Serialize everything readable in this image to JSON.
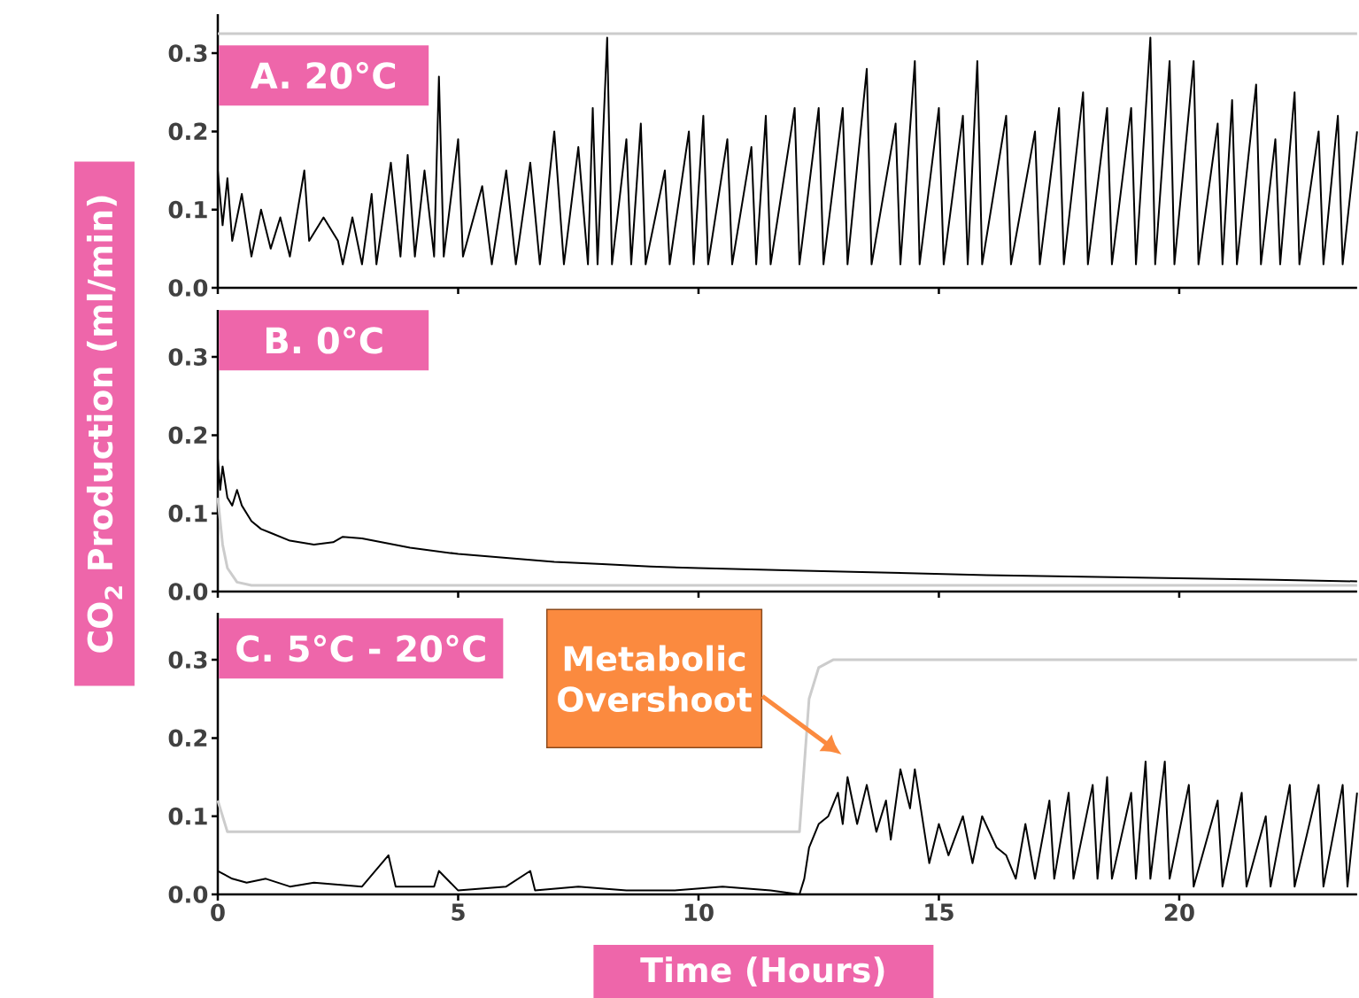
{
  "chart_data": [
    {
      "type": "line",
      "title": "A. 20°C",
      "xlim": [
        0,
        23.7
      ],
      "ylim": [
        0,
        0.35
      ],
      "xticks": [
        0,
        5,
        10,
        15,
        20
      ],
      "yticks": [
        {
          "value": 0,
          "label": "0.0"
        },
        {
          "value": 0.1,
          "label": "0.1"
        },
        {
          "value": 0.2,
          "label": "0.2"
        },
        {
          "value": 0.3,
          "label": "0.3"
        }
      ],
      "tick_labels": "y",
      "series": [
        {
          "color": "#cccccc",
          "x": [
            0,
            23.7
          ],
          "values": [
            0.325,
            0.325
          ]
        },
        {
          "color": "#000000",
          "x": [
            0,
            0.1,
            0.2,
            0.3,
            0.5,
            0.7,
            0.9,
            1.1,
            1.3,
            1.5,
            1.8,
            1.9,
            2.2,
            2.5,
            2.6,
            2.8,
            3.0,
            3.2,
            3.3,
            3.6,
            3.8,
            3.95,
            4.1,
            4.3,
            4.5,
            4.6,
            4.7,
            5.0,
            5.1,
            5.5,
            5.7,
            6.0,
            6.2,
            6.5,
            6.7,
            7.0,
            7.2,
            7.5,
            7.7,
            7.8,
            7.9,
            8.1,
            8.2,
            8.5,
            8.6,
            8.8,
            8.9,
            9.3,
            9.4,
            9.8,
            9.9,
            10.1,
            10.2,
            10.6,
            10.7,
            11.1,
            11.2,
            11.4,
            11.5,
            12.0,
            12.1,
            12.5,
            12.6,
            13.0,
            13.1,
            13.5,
            13.6,
            14.1,
            14.2,
            14.5,
            14.6,
            15.0,
            15.1,
            15.5,
            15.6,
            15.8,
            15.9,
            16.4,
            16.5,
            17.0,
            17.1,
            17.5,
            17.6,
            18.0,
            18.1,
            18.5,
            18.6,
            19.0,
            19.1,
            19.4,
            19.5,
            19.8,
            19.9,
            20.3,
            20.4,
            20.8,
            20.9,
            21.1,
            21.2,
            21.6,
            21.7,
            22.0,
            22.1,
            22.4,
            22.5,
            22.9,
            23.0,
            23.3,
            23.4,
            23.7
          ],
          "values": [
            0.15,
            0.08,
            0.14,
            0.06,
            0.12,
            0.04,
            0.1,
            0.05,
            0.09,
            0.04,
            0.15,
            0.06,
            0.09,
            0.06,
            0.03,
            0.09,
            0.03,
            0.12,
            0.03,
            0.16,
            0.04,
            0.17,
            0.04,
            0.15,
            0.04,
            0.27,
            0.04,
            0.19,
            0.04,
            0.13,
            0.03,
            0.15,
            0.03,
            0.16,
            0.03,
            0.2,
            0.03,
            0.18,
            0.03,
            0.23,
            0.03,
            0.32,
            0.03,
            0.19,
            0.03,
            0.21,
            0.03,
            0.15,
            0.03,
            0.2,
            0.03,
            0.22,
            0.03,
            0.19,
            0.03,
            0.18,
            0.03,
            0.22,
            0.03,
            0.23,
            0.03,
            0.23,
            0.03,
            0.23,
            0.03,
            0.28,
            0.03,
            0.21,
            0.03,
            0.29,
            0.03,
            0.23,
            0.03,
            0.22,
            0.03,
            0.29,
            0.03,
            0.22,
            0.03,
            0.2,
            0.03,
            0.23,
            0.03,
            0.25,
            0.03,
            0.23,
            0.03,
            0.23,
            0.03,
            0.32,
            0.03,
            0.29,
            0.03,
            0.29,
            0.03,
            0.21,
            0.03,
            0.24,
            0.03,
            0.26,
            0.03,
            0.19,
            0.03,
            0.25,
            0.03,
            0.2,
            0.03,
            0.22,
            0.03,
            0.2
          ]
        }
      ]
    },
    {
      "type": "line",
      "title": "B. 0°C",
      "ylabel": "CO$_{2}$ Production (ml/min)",
      "xlim": [
        0,
        23.7
      ],
      "ylim": [
        0,
        0.36
      ],
      "xticks": [
        0,
        5,
        10,
        15,
        20
      ],
      "yticks": [
        {
          "value": 0,
          "label": "0.0"
        },
        {
          "value": 0.1,
          "label": "0.1"
        },
        {
          "value": 0.2,
          "label": "0.2"
        },
        {
          "value": 0.3,
          "label": "0.3"
        }
      ],
      "tick_labels": "y",
      "series": [
        {
          "color": "#cccccc",
          "x": [
            0,
            0.1,
            0.2,
            0.4,
            0.7,
            2,
            23.7
          ],
          "values": [
            0.12,
            0.06,
            0.03,
            0.012,
            0.008,
            0.008,
            0.008
          ]
        },
        {
          "color": "#000000",
          "x": [
            0,
            0.05,
            0.1,
            0.2,
            0.3,
            0.4,
            0.5,
            0.7,
            0.9,
            1.1,
            1.5,
            2,
            2.4,
            2.6,
            3,
            4,
            5,
            6,
            7,
            8,
            9,
            10,
            12,
            14,
            16,
            18,
            20,
            22,
            23.7
          ],
          "values": [
            0.17,
            0.13,
            0.16,
            0.12,
            0.11,
            0.13,
            0.11,
            0.09,
            0.08,
            0.075,
            0.065,
            0.06,
            0.063,
            0.07,
            0.068,
            0.056,
            0.048,
            0.043,
            0.038,
            0.035,
            0.032,
            0.03,
            0.027,
            0.024,
            0.021,
            0.019,
            0.017,
            0.015,
            0.013
          ]
        }
      ]
    },
    {
      "type": "line",
      "title": "C. 5°C - 20°C",
      "xlabel": "Time (Hours)",
      "xlim": [
        0,
        23.7
      ],
      "ylim": [
        0,
        0.36
      ],
      "xticks": [
        0,
        5,
        10,
        15,
        20
      ],
      "yticks": [
        {
          "value": 0,
          "label": "0.0"
        },
        {
          "value": 0.1,
          "label": "0.1"
        },
        {
          "value": 0.2,
          "label": "0.2"
        },
        {
          "value": 0.3,
          "label": "0.3"
        }
      ],
      "annotations": [
        "Metabolic Overshoot"
      ],
      "series": [
        {
          "color": "#cccccc",
          "x": [
            0,
            0.2,
            12.1,
            12.3,
            12.5,
            12.8,
            23.7
          ],
          "values": [
            0.12,
            0.08,
            0.08,
            0.25,
            0.29,
            0.3,
            0.3
          ]
        },
        {
          "color": "#000000",
          "x": [
            0,
            0.3,
            0.6,
            1,
            1.5,
            2,
            3,
            3.55,
            3.7,
            4.5,
            4.6,
            5,
            6,
            6.5,
            6.6,
            7.5,
            8.5,
            9.5,
            10.5,
            11.5,
            12.1,
            12.2,
            12.3,
            12.5,
            12.7,
            12.9,
            13.0,
            13.1,
            13.3,
            13.5,
            13.7,
            13.9,
            14.0,
            14.2,
            14.4,
            14.5,
            14.7,
            14.8,
            15.0,
            15.2,
            15.5,
            15.7,
            15.9,
            16.2,
            16.4,
            16.6,
            16.8,
            17.0,
            17.3,
            17.4,
            17.7,
            17.8,
            18.2,
            18.3,
            18.5,
            18.6,
            19.0,
            19.1,
            19.3,
            19.4,
            19.7,
            19.8,
            20.2,
            20.3,
            20.8,
            20.9,
            21.3,
            21.4,
            21.8,
            21.9,
            22.3,
            22.4,
            22.9,
            23.0,
            23.4,
            23.5,
            23.7
          ],
          "values": [
            0.03,
            0.02,
            0.015,
            0.02,
            0.01,
            0.015,
            0.01,
            0.05,
            0.01,
            0.01,
            0.03,
            0.005,
            0.01,
            0.03,
            0.005,
            0.01,
            0.005,
            0.005,
            0.01,
            0.005,
            0.0,
            0.02,
            0.06,
            0.09,
            0.1,
            0.13,
            0.09,
            0.15,
            0.09,
            0.14,
            0.08,
            0.12,
            0.07,
            0.16,
            0.11,
            0.16,
            0.08,
            0.04,
            0.09,
            0.05,
            0.1,
            0.04,
            0.1,
            0.06,
            0.05,
            0.02,
            0.09,
            0.02,
            0.12,
            0.02,
            0.13,
            0.02,
            0.14,
            0.02,
            0.15,
            0.02,
            0.13,
            0.02,
            0.17,
            0.02,
            0.17,
            0.02,
            0.14,
            0.01,
            0.12,
            0.01,
            0.13,
            0.01,
            0.1,
            0.01,
            0.14,
            0.01,
            0.14,
            0.01,
            0.14,
            0.01,
            0.13
          ]
        }
      ]
    }
  ]
}
